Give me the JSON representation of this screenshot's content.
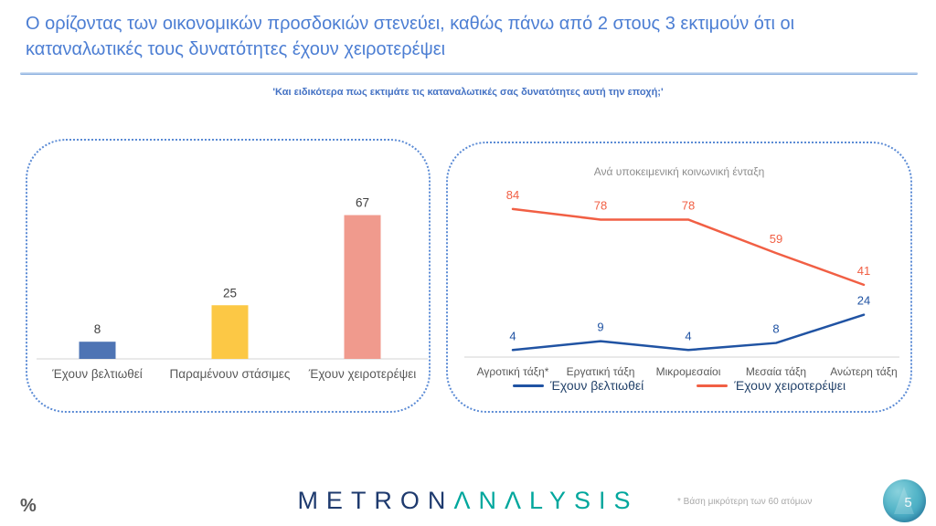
{
  "header": {
    "title": "Ο ορίζοντας των οικονομικών προσδοκιών στενεύει, καθώς πάνω από 2 στους 3 εκτιμούν ότι οι καταναλωτικές τους δυνατότητες έχουν χειροτερέψει",
    "subtitle": "'Και ειδικότερα πως εκτιμάτε τις καταναλωτικές σας δυνατότητες αυτή την εποχή;'"
  },
  "footer": {
    "percent_mark": "%",
    "footnote": "*  Βάση μικρότερη των 60 ατόμων",
    "page_number": "5",
    "logo_part1": "METRON",
    "logo_part2": "ΛNΛLYSIS"
  },
  "colors": {
    "title_blue": "#4C7ED3",
    "panel_border": "#5B8BD5",
    "axis_gray": "#E2E2E2",
    "label_gray": "#595959",
    "value_gray": "#404040"
  },
  "chart_data": [
    {
      "type": "bar",
      "title": "",
      "categories": [
        "Έχουν βελτιωθεί",
        "Παραμένουν στάσιμες",
        "Έχουν χειροτερέψει"
      ],
      "values": [
        8,
        25,
        67
      ],
      "bar_colors": [
        "#4E74B4",
        "#FCC845",
        "#F09A8D"
      ],
      "ylim": [
        0,
        100
      ],
      "grid": false,
      "data_labels": true,
      "xlabel": "",
      "ylabel": ""
    },
    {
      "type": "line",
      "title": "Ανά υποκειμενική κοινωνική ένταξη",
      "categories": [
        "Αγροτική τάξη*",
        "Εργατική τάξη",
        "Μικρομεσαίοι",
        "Μεσαία τάξη",
        "Ανώτερη τάξη"
      ],
      "series": [
        {
          "name": "Έχουν βελτιωθεί",
          "values": [
            4,
            9,
            4,
            8,
            24
          ],
          "color": "#2053A3"
        },
        {
          "name": "Έχουν χειροτερέψει",
          "values": [
            84,
            78,
            78,
            59,
            41
          ],
          "color": "#F15F44"
        }
      ],
      "ylim": [
        0,
        95
      ],
      "grid": false,
      "legend_position": "bottom",
      "data_labels": true,
      "xlabel": "",
      "ylabel": ""
    }
  ]
}
